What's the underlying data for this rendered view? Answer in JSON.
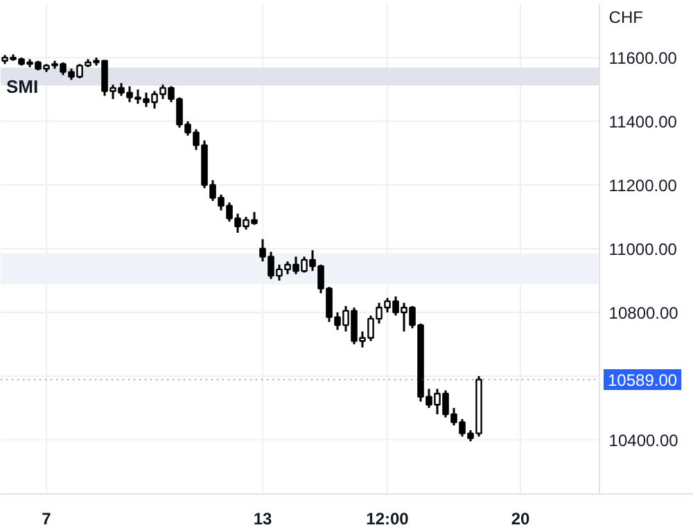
{
  "chart_data": {
    "type": "candlestick",
    "title": "SMI",
    "ylabel": "CHF",
    "categories": [
      null,
      null,
      null,
      null,
      null,
      "7",
      null,
      null,
      null,
      null,
      null,
      null,
      null,
      null,
      null,
      null,
      null,
      null,
      null,
      null,
      null,
      null,
      null,
      null,
      null,
      null,
      null,
      null,
      null,
      null,
      null,
      "13",
      null,
      null,
      null,
      null,
      null,
      null,
      null,
      null,
      null,
      null,
      null,
      null,
      null,
      null,
      "12:00",
      null,
      null,
      null,
      null,
      null,
      null,
      null,
      null,
      null,
      null,
      null,
      null,
      null,
      null,
      null,
      "20",
      null,
      null,
      null,
      null,
      null,
      null,
      null,
      null,
      null
    ],
    "ohlc": [
      [
        11590,
        11608,
        11580,
        11600
      ],
      [
        11600,
        11610,
        11590,
        11595
      ],
      [
        11595,
        11600,
        11575,
        11580
      ],
      [
        11580,
        11595,
        11570,
        11585
      ],
      [
        11585,
        11590,
        11560,
        11565
      ],
      [
        11565,
        11580,
        11555,
        11575
      ],
      [
        11575,
        11590,
        11565,
        11580
      ],
      [
        11580,
        11585,
        11545,
        11555
      ],
      [
        11555,
        11565,
        11530,
        11540
      ],
      [
        11540,
        11580,
        11535,
        11575
      ],
      [
        11575,
        11595,
        11570,
        11585
      ],
      [
        11585,
        11600,
        11575,
        11590
      ],
      [
        11590,
        11592,
        11480,
        11495
      ],
      [
        11495,
        11515,
        11470,
        11505
      ],
      [
        11505,
        11520,
        11480,
        11490
      ],
      [
        11490,
        11510,
        11460,
        11475
      ],
      [
        11475,
        11500,
        11455,
        11470
      ],
      [
        11470,
        11490,
        11445,
        11460
      ],
      [
        11460,
        11495,
        11440,
        11485
      ],
      [
        11485,
        11515,
        11470,
        11505
      ],
      [
        11505,
        11510,
        11460,
        11470
      ],
      [
        11470,
        11475,
        11380,
        11390
      ],
      [
        11390,
        11400,
        11355,
        11365
      ],
      [
        11365,
        11375,
        11310,
        11325
      ],
      [
        11325,
        11340,
        11190,
        11200
      ],
      [
        11200,
        11215,
        11150,
        11160
      ],
      [
        11160,
        11170,
        11120,
        11135
      ],
      [
        11135,
        11145,
        11085,
        11095
      ],
      [
        11095,
        11110,
        11050,
        11070
      ],
      [
        11070,
        11100,
        11060,
        11090
      ],
      [
        11090,
        11115,
        11075,
        11080
      ],
      [
        11000,
        11030,
        10960,
        10975
      ],
      [
        10975,
        10990,
        10905,
        10915
      ],
      [
        10915,
        10950,
        10900,
        10935
      ],
      [
        10935,
        10960,
        10920,
        10950
      ],
      [
        10950,
        10975,
        10920,
        10930
      ],
      [
        10930,
        10975,
        10925,
        10965
      ],
      [
        10965,
        10995,
        10930,
        10945
      ],
      [
        10945,
        10950,
        10860,
        10875
      ],
      [
        10875,
        10880,
        10770,
        10785
      ],
      [
        10785,
        10800,
        10745,
        10760
      ],
      [
        10760,
        10820,
        10740,
        10805
      ],
      [
        10805,
        10815,
        10700,
        10710
      ],
      [
        10710,
        10740,
        10690,
        10720
      ],
      [
        10720,
        10790,
        10710,
        10780
      ],
      [
        10780,
        10830,
        10765,
        10815
      ],
      [
        10815,
        10845,
        10800,
        10835
      ],
      [
        10835,
        10850,
        10790,
        10800
      ],
      [
        10800,
        10830,
        10740,
        10815
      ],
      [
        10815,
        10820,
        10750,
        10760
      ],
      [
        10760,
        10765,
        10520,
        10535
      ],
      [
        10535,
        10560,
        10500,
        10510
      ],
      [
        10510,
        10560,
        10480,
        10545
      ],
      [
        10545,
        10555,
        10470,
        10480
      ],
      [
        10480,
        10500,
        10445,
        10455
      ],
      [
        10455,
        10465,
        10410,
        10420
      ],
      [
        10420,
        10430,
        10395,
        10405
      ],
      [
        10420,
        10600,
        10410,
        10589
      ],
      null,
      null,
      null,
      null,
      null,
      null,
      null,
      null,
      null,
      null,
      null,
      null,
      null,
      null
    ],
    "ylim": [
      10230,
      11770
    ],
    "yticks": [
      {
        "value": 10400,
        "label": "10400.00"
      },
      {
        "value": 10600,
        "label": null
      },
      {
        "value": 10800,
        "label": "10800.00"
      },
      {
        "value": 11000,
        "label": "11000.00"
      },
      {
        "value": 11200,
        "label": "11200.00"
      },
      {
        "value": 11400,
        "label": "11400.00"
      },
      {
        "value": 11600,
        "label": "11600.00"
      }
    ],
    "ref_lines": [
      {
        "axis": "y",
        "value": 10589,
        "label": "10589.00",
        "color": "#2962ff",
        "line_style": "dotted"
      }
    ],
    "bands": [
      {
        "axis": "y",
        "from": 11512,
        "to": 11569,
        "color": "#e0e3eb"
      },
      {
        "axis": "y",
        "from": 10888,
        "to": 10985,
        "color": "#f0f3fa"
      }
    ],
    "grid": true
  }
}
